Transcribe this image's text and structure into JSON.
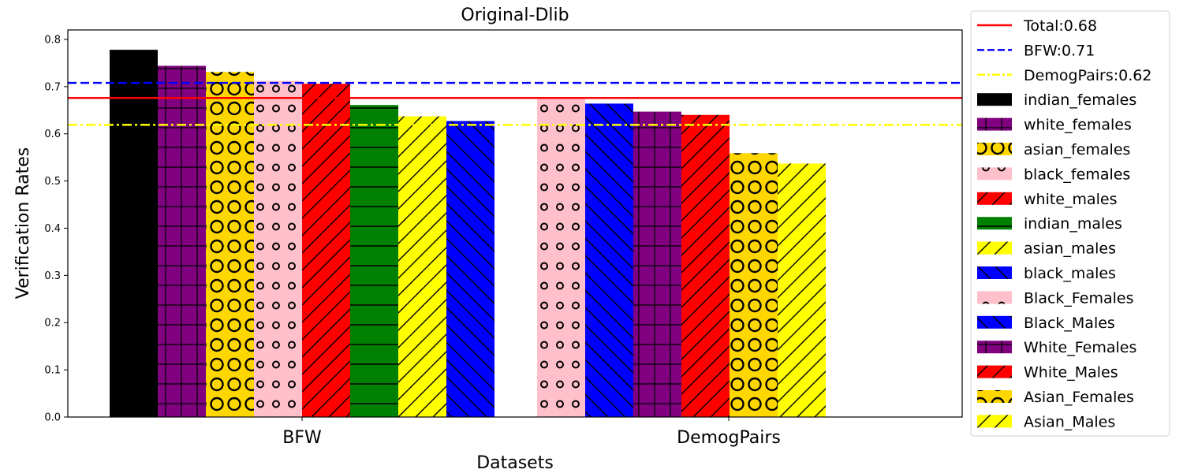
{
  "chart_data": {
    "type": "bar",
    "title": "Original-Dlib",
    "xlabel": "Datasets",
    "ylabel": "Verification Rates",
    "ylim": [
      0,
      0.82
    ],
    "yticks": [
      "0.0",
      "0.1",
      "0.2",
      "0.3",
      "0.4",
      "0.5",
      "0.6",
      "0.7",
      "0.8"
    ],
    "categories": [
      "BFW",
      "DemogPairs"
    ],
    "legend_position": "outside-right",
    "grid": false,
    "reference_lines": [
      {
        "name": "Total:0.68",
        "value": 0.676,
        "color": "#ff0000",
        "style": "solid"
      },
      {
        "name": "BFW:0.71",
        "value": 0.708,
        "color": "#0000ff",
        "style": "dashed"
      },
      {
        "name": "DemogPairs:0.62",
        "value": 0.619,
        "color": "#ffff00",
        "style": "dashdot"
      }
    ],
    "series": [
      {
        "name": "indian_females",
        "dataset": "BFW",
        "slot": 0,
        "value": 0.778,
        "color": "#000000",
        "hatch": "none"
      },
      {
        "name": "white_females",
        "dataset": "BFW",
        "slot": 1,
        "value": 0.744,
        "color": "#800080",
        "hatch": "grid"
      },
      {
        "name": "asian_females",
        "dataset": "BFW",
        "slot": 2,
        "value": 0.731,
        "color": "#ffd700",
        "hatch": "bigcircles"
      },
      {
        "name": "black_females",
        "dataset": "BFW",
        "slot": 3,
        "value": 0.712,
        "color": "#ffc0cb",
        "hatch": "smallcircles"
      },
      {
        "name": "white_males",
        "dataset": "BFW",
        "slot": 4,
        "value": 0.706,
        "color": "#ff0000",
        "hatch": "slash"
      },
      {
        "name": "indian_males",
        "dataset": "BFW",
        "slot": 5,
        "value": 0.661,
        "color": "#008000",
        "hatch": "horizontal"
      },
      {
        "name": "asian_males",
        "dataset": "BFW",
        "slot": 6,
        "value": 0.637,
        "color": "#ffff00",
        "hatch": "slash"
      },
      {
        "name": "black_males",
        "dataset": "BFW",
        "slot": 7,
        "value": 0.627,
        "color": "#0000ff",
        "hatch": "backslash"
      },
      {
        "name": "Black_Females",
        "dataset": "DemogPairs",
        "slot": 0,
        "value": 0.676,
        "color": "#ffc0cb",
        "hatch": "smallcircles"
      },
      {
        "name": "Black_Males",
        "dataset": "DemogPairs",
        "slot": 1,
        "value": 0.664,
        "color": "#0000ff",
        "hatch": "backslash"
      },
      {
        "name": "White_Females",
        "dataset": "DemogPairs",
        "slot": 2,
        "value": 0.647,
        "color": "#800080",
        "hatch": "grid"
      },
      {
        "name": "White_Males",
        "dataset": "DemogPairs",
        "slot": 3,
        "value": 0.64,
        "color": "#ff0000",
        "hatch": "slash"
      },
      {
        "name": "Asian_Females",
        "dataset": "DemogPairs",
        "slot": 4,
        "value": 0.559,
        "color": "#ffd700",
        "hatch": "bigcircles"
      },
      {
        "name": "Asian_Males",
        "dataset": "DemogPairs",
        "slot": 5,
        "value": 0.537,
        "color": "#ffff00",
        "hatch": "slash"
      }
    ]
  }
}
